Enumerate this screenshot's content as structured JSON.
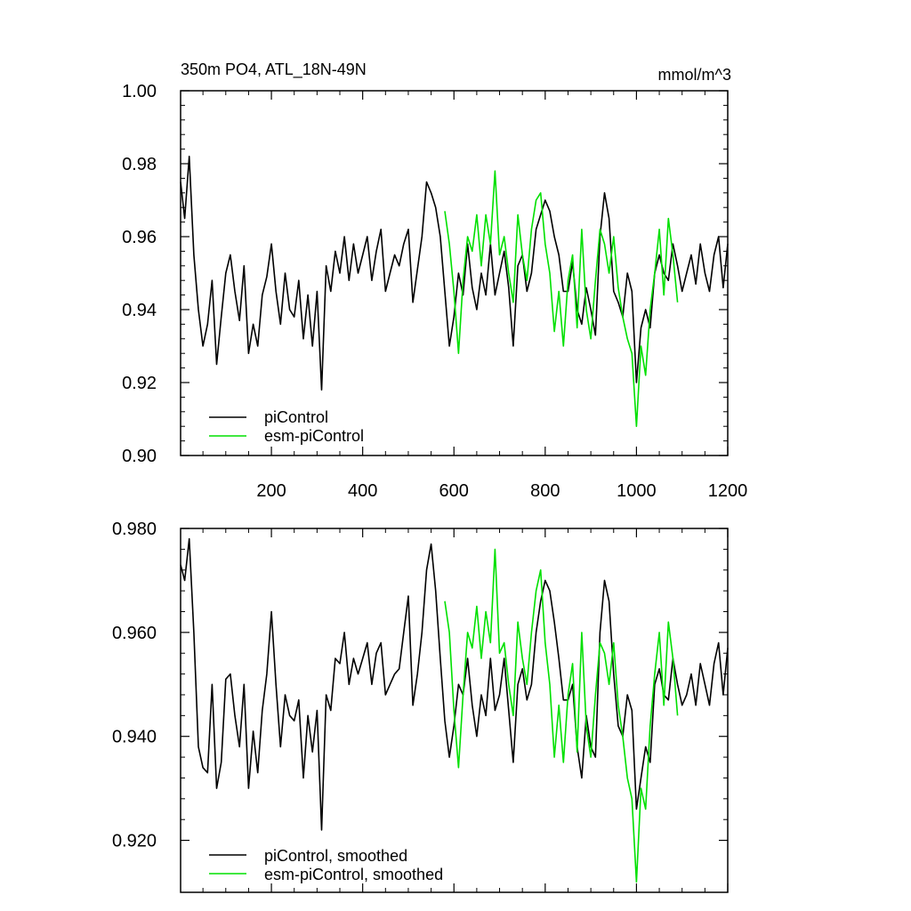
{
  "chart_data": [
    {
      "type": "line",
      "title": "350m PO4, ATL_18N-49N",
      "units": "mmol/m^3",
      "xlim": [
        1,
        1200
      ],
      "ylim": [
        0.9,
        1.0
      ],
      "xticks": [
        200,
        400,
        600,
        800,
        1000,
        1200
      ],
      "xtick_labels": [
        "200",
        "400",
        "600",
        "800",
        "1000",
        "1200"
      ],
      "yticks": [
        0.9,
        0.92,
        0.94,
        0.96,
        0.98,
        1.0
      ],
      "ytick_labels": [
        "0.90",
        "0.92",
        "0.94",
        "0.96",
        "0.98",
        "1.00"
      ],
      "legend_position": "bottom-left",
      "series": [
        {
          "name": "piControl",
          "color": "#000000",
          "x": [
            1,
            10,
            20,
            30,
            40,
            50,
            60,
            70,
            80,
            90,
            100,
            110,
            120,
            130,
            140,
            150,
            160,
            170,
            180,
            190,
            200,
            210,
            220,
            230,
            240,
            250,
            260,
            270,
            280,
            290,
            300,
            310,
            320,
            330,
            340,
            350,
            360,
            370,
            380,
            390,
            400,
            410,
            420,
            430,
            440,
            450,
            460,
            470,
            480,
            490,
            500,
            510,
            520,
            530,
            540,
            550,
            560,
            570,
            580,
            590,
            600,
            610,
            620,
            630,
            640,
            650,
            660,
            670,
            680,
            690,
            700,
            710,
            720,
            730,
            740,
            750,
            760,
            770,
            780,
            790,
            800,
            810,
            820,
            830,
            840,
            850,
            860,
            870,
            880,
            890,
            900,
            910,
            920,
            930,
            940,
            950,
            960,
            970,
            980,
            990,
            1000,
            1010,
            1020,
            1030,
            1040,
            1050,
            1060,
            1070,
            1080,
            1090,
            1100,
            1110,
            1120,
            1130,
            1140,
            1150,
            1160,
            1170,
            1180,
            1190,
            1200
          ],
          "y": [
            0.975,
            0.965,
            0.982,
            0.955,
            0.94,
            0.93,
            0.936,
            0.948,
            0.925,
            0.938,
            0.95,
            0.955,
            0.945,
            0.937,
            0.952,
            0.928,
            0.936,
            0.93,
            0.944,
            0.949,
            0.958,
            0.945,
            0.936,
            0.95,
            0.94,
            0.938,
            0.948,
            0.932,
            0.944,
            0.93,
            0.945,
            0.918,
            0.952,
            0.945,
            0.956,
            0.95,
            0.96,
            0.948,
            0.958,
            0.95,
            0.955,
            0.96,
            0.948,
            0.956,
            0.962,
            0.945,
            0.95,
            0.955,
            0.952,
            0.958,
            0.962,
            0.942,
            0.951,
            0.96,
            0.975,
            0.972,
            0.968,
            0.96,
            0.945,
            0.93,
            0.938,
            0.95,
            0.944,
            0.958,
            0.946,
            0.94,
            0.95,
            0.944,
            0.958,
            0.944,
            0.95,
            0.956,
            0.946,
            0.93,
            0.952,
            0.955,
            0.945,
            0.95,
            0.962,
            0.966,
            0.97,
            0.967,
            0.96,
            0.955,
            0.945,
            0.945,
            0.953,
            0.94,
            0.936,
            0.946,
            0.94,
            0.933,
            0.96,
            0.972,
            0.965,
            0.945,
            0.942,
            0.938,
            0.95,
            0.945,
            0.92,
            0.935,
            0.94,
            0.935,
            0.95,
            0.955,
            0.95,
            0.948,
            0.958,
            0.952,
            0.945,
            0.95,
            0.955,
            0.947,
            0.958,
            0.95,
            0.945,
            0.955,
            0.96,
            0.946,
            0.958
          ]
        },
        {
          "name": "esm-piControl",
          "color": "#00e000",
          "x": [
            580,
            590,
            600,
            610,
            620,
            630,
            640,
            650,
            660,
            670,
            680,
            690,
            700,
            710,
            720,
            730,
            740,
            750,
            760,
            770,
            780,
            790,
            800,
            810,
            820,
            830,
            840,
            850,
            860,
            870,
            880,
            890,
            900,
            910,
            920,
            930,
            940,
            950,
            960,
            970,
            980,
            990,
            1000,
            1010,
            1020,
            1030,
            1040,
            1050,
            1060,
            1070,
            1080,
            1090
          ],
          "y": [
            0.967,
            0.958,
            0.945,
            0.928,
            0.948,
            0.96,
            0.956,
            0.966,
            0.952,
            0.966,
            0.958,
            0.978,
            0.955,
            0.96,
            0.95,
            0.942,
            0.966,
            0.955,
            0.948,
            0.962,
            0.97,
            0.972,
            0.958,
            0.95,
            0.934,
            0.945,
            0.93,
            0.948,
            0.955,
            0.935,
            0.962,
            0.94,
            0.932,
            0.948,
            0.962,
            0.958,
            0.95,
            0.96,
            0.946,
            0.938,
            0.932,
            0.928,
            0.908,
            0.93,
            0.922,
            0.94,
            0.95,
            0.962,
            0.944,
            0.965,
            0.955,
            0.942
          ]
        }
      ]
    },
    {
      "type": "line",
      "xlim": [
        1,
        1200
      ],
      "ylim": [
        0.91,
        0.98
      ],
      "yticks": [
        0.92,
        0.94,
        0.96,
        0.98
      ],
      "ytick_labels": [
        "0.920",
        "0.940",
        "0.960",
        "0.980"
      ],
      "xticks": [
        200,
        400,
        600,
        800,
        1000,
        1200
      ],
      "legend_position": "bottom-left",
      "series": [
        {
          "name": "piControl, smoothed",
          "color": "#000000",
          "x": [
            1,
            10,
            20,
            30,
            40,
            50,
            60,
            70,
            80,
            90,
            100,
            110,
            120,
            130,
            140,
            150,
            160,
            170,
            180,
            190,
            200,
            210,
            220,
            230,
            240,
            250,
            260,
            270,
            280,
            290,
            300,
            310,
            320,
            330,
            340,
            350,
            360,
            370,
            380,
            390,
            400,
            410,
            420,
            430,
            440,
            450,
            460,
            470,
            480,
            490,
            500,
            510,
            520,
            530,
            540,
            550,
            560,
            570,
            580,
            590,
            600,
            610,
            620,
            630,
            640,
            650,
            660,
            670,
            680,
            690,
            700,
            710,
            720,
            730,
            740,
            750,
            760,
            770,
            780,
            790,
            800,
            810,
            820,
            830,
            840,
            850,
            860,
            870,
            880,
            890,
            900,
            910,
            920,
            930,
            940,
            950,
            960,
            970,
            980,
            990,
            1000,
            1010,
            1020,
            1030,
            1040,
            1050,
            1060,
            1070,
            1080,
            1090,
            1100,
            1110,
            1120,
            1130,
            1140,
            1150,
            1160,
            1170,
            1180,
            1190,
            1200
          ],
          "y": [
            0.973,
            0.97,
            0.978,
            0.96,
            0.938,
            0.934,
            0.933,
            0.95,
            0.93,
            0.935,
            0.951,
            0.952,
            0.944,
            0.938,
            0.95,
            0.93,
            0.941,
            0.933,
            0.945,
            0.952,
            0.964,
            0.95,
            0.938,
            0.948,
            0.944,
            0.943,
            0.947,
            0.932,
            0.944,
            0.937,
            0.945,
            0.922,
            0.948,
            0.945,
            0.955,
            0.954,
            0.96,
            0.95,
            0.955,
            0.952,
            0.955,
            0.958,
            0.95,
            0.956,
            0.958,
            0.948,
            0.95,
            0.952,
            0.953,
            0.96,
            0.967,
            0.946,
            0.952,
            0.96,
            0.972,
            0.977,
            0.968,
            0.955,
            0.943,
            0.936,
            0.942,
            0.95,
            0.948,
            0.955,
            0.946,
            0.94,
            0.948,
            0.944,
            0.955,
            0.945,
            0.948,
            0.955,
            0.945,
            0.935,
            0.95,
            0.953,
            0.947,
            0.95,
            0.96,
            0.966,
            0.97,
            0.968,
            0.962,
            0.955,
            0.947,
            0.947,
            0.95,
            0.938,
            0.932,
            0.944,
            0.938,
            0.936,
            0.96,
            0.97,
            0.966,
            0.952,
            0.942,
            0.94,
            0.948,
            0.945,
            0.926,
            0.932,
            0.938,
            0.935,
            0.95,
            0.953,
            0.948,
            0.947,
            0.955,
            0.95,
            0.946,
            0.948,
            0.952,
            0.946,
            0.954,
            0.95,
            0.946,
            0.954,
            0.958,
            0.948,
            0.957
          ]
        },
        {
          "name": "esm-piControl, smoothed",
          "color": "#00e000",
          "x": [
            580,
            590,
            600,
            610,
            620,
            630,
            640,
            650,
            660,
            670,
            680,
            690,
            700,
            710,
            720,
            730,
            740,
            750,
            760,
            770,
            780,
            790,
            800,
            810,
            820,
            830,
            840,
            850,
            860,
            870,
            880,
            890,
            900,
            910,
            920,
            930,
            940,
            950,
            960,
            970,
            980,
            990,
            1000,
            1010,
            1020,
            1030,
            1040,
            1050,
            1060,
            1070,
            1080,
            1090
          ],
          "y": [
            0.966,
            0.96,
            0.945,
            0.934,
            0.948,
            0.96,
            0.957,
            0.965,
            0.955,
            0.964,
            0.958,
            0.976,
            0.956,
            0.958,
            0.95,
            0.944,
            0.962,
            0.955,
            0.95,
            0.96,
            0.968,
            0.972,
            0.958,
            0.95,
            0.936,
            0.946,
            0.935,
            0.948,
            0.954,
            0.937,
            0.96,
            0.942,
            0.936,
            0.948,
            0.958,
            0.956,
            0.95,
            0.958,
            0.946,
            0.94,
            0.932,
            0.928,
            0.912,
            0.93,
            0.926,
            0.942,
            0.952,
            0.96,
            0.946,
            0.962,
            0.955,
            0.944
          ]
        }
      ]
    }
  ]
}
